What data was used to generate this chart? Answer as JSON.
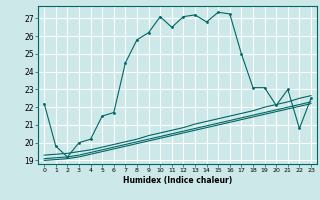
{
  "xlabel": "Humidex (Indice chaleur)",
  "bg_color": "#cce8e8",
  "grid_color": "#ffffff",
  "line_color": "#006666",
  "x_ticks": [
    0,
    1,
    2,
    3,
    4,
    5,
    6,
    7,
    8,
    9,
    10,
    11,
    12,
    13,
    14,
    15,
    16,
    17,
    18,
    19,
    20,
    21,
    22,
    23
  ],
  "y_ticks": [
    19,
    20,
    21,
    22,
    23,
    24,
    25,
    26,
    27
  ],
  "ylim": [
    18.8,
    27.7
  ],
  "xlim": [
    -0.5,
    23.5
  ],
  "curve1_x": [
    0,
    1,
    2,
    3,
    4,
    5,
    6,
    7,
    8,
    9,
    10,
    11,
    12,
    13,
    14,
    15,
    16,
    17,
    18,
    19,
    20,
    21,
    22,
    23
  ],
  "curve1_y": [
    22.2,
    19.8,
    19.2,
    20.0,
    20.2,
    21.5,
    21.7,
    24.5,
    25.8,
    26.2,
    27.1,
    26.5,
    27.1,
    27.2,
    26.8,
    27.35,
    27.25,
    25.0,
    23.1,
    23.1,
    22.1,
    23.0,
    20.8,
    22.5
  ],
  "curve2_x": [
    0,
    1,
    2,
    3,
    4,
    5,
    6,
    7,
    8,
    9,
    10,
    11,
    12,
    13,
    14,
    15,
    16,
    17,
    18,
    19,
    20,
    21,
    22,
    23
  ],
  "curve2_y": [
    19.3,
    19.35,
    19.4,
    19.5,
    19.6,
    19.75,
    19.9,
    20.05,
    20.2,
    20.4,
    20.55,
    20.7,
    20.85,
    21.05,
    21.2,
    21.35,
    21.5,
    21.65,
    21.8,
    22.0,
    22.15,
    22.3,
    22.5,
    22.65
  ],
  "curve3_x": [
    0,
    1,
    2,
    3,
    4,
    5,
    6,
    7,
    8,
    9,
    10,
    11,
    12,
    13,
    14,
    15,
    16,
    17,
    18,
    19,
    20,
    21,
    22,
    23
  ],
  "curve3_y": [
    19.1,
    19.15,
    19.2,
    19.3,
    19.45,
    19.6,
    19.75,
    19.9,
    20.05,
    20.2,
    20.35,
    20.5,
    20.65,
    20.8,
    20.95,
    21.1,
    21.25,
    21.4,
    21.55,
    21.7,
    21.85,
    22.0,
    22.15,
    22.3
  ],
  "curve4_x": [
    0,
    1,
    2,
    3,
    4,
    5,
    6,
    7,
    8,
    9,
    10,
    11,
    12,
    13,
    14,
    15,
    16,
    17,
    18,
    19,
    20,
    21,
    22,
    23
  ],
  "curve4_y": [
    19.0,
    19.05,
    19.1,
    19.2,
    19.35,
    19.5,
    19.65,
    19.8,
    19.95,
    20.1,
    20.25,
    20.4,
    20.55,
    20.7,
    20.85,
    21.0,
    21.15,
    21.3,
    21.45,
    21.6,
    21.75,
    21.9,
    22.05,
    22.2
  ]
}
